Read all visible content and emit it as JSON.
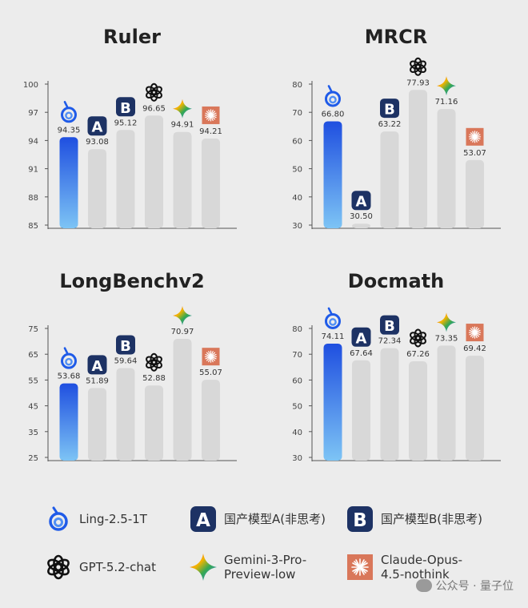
{
  "models": [
    {
      "key": "ling",
      "name": "Ling-2.5-1T",
      "icon": "ling-swirl-icon",
      "color": "#1f5be8"
    },
    {
      "key": "a",
      "name": "国产模型A(非思考)",
      "icon": "letter-a-icon",
      "color": "#1d3264"
    },
    {
      "key": "b",
      "name": "国产模型B(非思考)",
      "icon": "letter-b-icon",
      "color": "#1d3264"
    },
    {
      "key": "gpt",
      "name": "GPT-5.2-chat",
      "icon": "openai-logo-icon",
      "color": "#111111"
    },
    {
      "key": "gemini",
      "name": "Gemini-3-Pro-Preview-low",
      "icon": "gemini-sparkle-icon",
      "color": "#4a7ae0"
    },
    {
      "key": "claude",
      "name": "Claude-Opus-4.5-nothink",
      "icon": "claude-starburst-icon",
      "color": "#d9775a"
    }
  ],
  "legend": {
    "ling": "Ling-2.5-1T",
    "a": "国产模型A(非思考)",
    "b": "国产模型B(非思考)",
    "gpt": "GPT-5.2-chat",
    "gemini_1": "Gemini-3-Pro-",
    "gemini_2": "Preview-low",
    "claude_1": "Claude-Opus-",
    "claude_2": "4.5-nothink"
  },
  "watermark": "公众号 · 量子位",
  "chart_data": [
    {
      "type": "bar",
      "title": "Ruler",
      "categories": [
        "Ling-2.5-1T",
        "国产模型A(非思考)",
        "国产模型B(非思考)",
        "GPT-5.2-chat",
        "Gemini-3-Pro-Preview-low",
        "Claude-Opus-4.5-nothink"
      ],
      "values": [
        94.35,
        93.08,
        95.12,
        96.65,
        94.91,
        94.21
      ],
      "ylim": [
        85,
        100
      ],
      "yticks": [
        85,
        88,
        91,
        94,
        97,
        100
      ]
    },
    {
      "type": "bar",
      "title": "MRCR",
      "categories": [
        "Ling-2.5-1T",
        "国产模型A(非思考)",
        "国产模型B(非思考)",
        "GPT-5.2-chat",
        "Gemini-3-Pro-Preview-low",
        "Claude-Opus-4.5-nothink"
      ],
      "values": [
        66.8,
        30.5,
        63.22,
        77.93,
        71.16,
        53.07
      ],
      "ylim": [
        30,
        80
      ],
      "yticks": [
        30,
        40,
        50,
        60,
        70,
        80
      ]
    },
    {
      "type": "bar",
      "title": "LongBenchv2",
      "categories": [
        "Ling-2.5-1T",
        "国产模型A(非思考)",
        "国产模型B(非思考)",
        "GPT-5.2-chat",
        "Gemini-3-Pro-Preview-low",
        "Claude-Opus-4.5-nothink"
      ],
      "values": [
        53.68,
        51.89,
        59.64,
        52.88,
        70.97,
        55.07
      ],
      "ylim": [
        25,
        75
      ],
      "yticks": [
        25,
        35,
        45,
        55,
        65,
        75
      ]
    },
    {
      "type": "bar",
      "title": "Docmath",
      "categories": [
        "Ling-2.5-1T",
        "国产模型A(非思考)",
        "国产模型B(非思考)",
        "GPT-5.2-chat",
        "Gemini-3-Pro-Preview-low",
        "Claude-Opus-4.5-nothink"
      ],
      "values": [
        74.11,
        67.64,
        72.34,
        67.26,
        73.35,
        69.42
      ],
      "ylim": [
        30,
        80
      ],
      "yticks": [
        30,
        40,
        50,
        60,
        70,
        80
      ]
    }
  ]
}
